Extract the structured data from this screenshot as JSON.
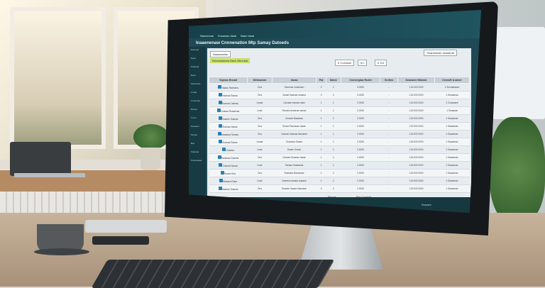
{
  "app": {
    "menu": [
      "Nacionmai",
      "Snnawsu taeal",
      "Baen tneai"
    ],
    "title": "Inaaenenaw Cnnnenation Mtp Samay Datoeds",
    "primary_button": "Naasaanian",
    "status_tag": "Ninnaaaanaa Nach Bhnneal",
    "search_placeholder": "Snaneasiae aeaasnat",
    "filters": [
      "tr Cunnaat",
      "ni t",
      "n 1nt"
    ],
    "sidebar_items": [
      "Rasenat",
      "Naen",
      "Sraanaa",
      "Rtani",
      "Saaoanae",
      "Lnaaa",
      "Cmaenae",
      "Rassa",
      "Tnnet",
      "Snuaann",
      "Nanaa",
      "Bas",
      "Staoaaa",
      "Snaanaaaa"
    ],
    "columns": [
      "Sigmas Bnoad",
      "Wetwoniae",
      "Jaeao",
      "Pat",
      "Saton",
      "Cnnvergiaw Ruder",
      "Sretins",
      "Deacaent Mbeant",
      "Cesnoft & adser"
    ],
    "rows": [
      [
        "Naaaa Raenaea",
        "Ona",
        "Soneeae onaeeaen",
        "0",
        "1",
        "0.0000",
        "-",
        "1.00.000 0000",
        "1 Snnaaeaaee"
      ],
      [
        "Nsanaa Ranaa",
        "Ona",
        "Ssaae Naanae anaaea",
        "0",
        "2",
        "0.0000",
        "-",
        "1.00.000 0000",
        "1 Sanaaeaa"
      ],
      [
        "Snanaa Caaeaa",
        "Lnaae",
        "Canaae naeeaa naee",
        "1",
        "1",
        "0.0000",
        "-",
        "1.00.000 0000",
        "1 Cnaeaaee"
      ],
      [
        "Cnaeaa Rnaaenae",
        "Lnae",
        "Snnaee anaenae aenae",
        "1",
        "1",
        "0.0000",
        "-",
        "1.00.000 0000",
        "1 Snaaeaa"
      ],
      [
        "Rnaeee Snaeae",
        "Ona",
        "Snanee Baaeaae",
        "1",
        "1",
        "0.0000",
        "-",
        "1.00.000 0000",
        "1 Saaeaeae"
      ],
      [
        "Snaeaa Naeae",
        "Ona",
        "Snaee Ranaeaa naeae",
        "1",
        "1",
        "0.0000",
        "-",
        "1.00.000 0000",
        "1 Saaeaeae"
      ],
      [
        "Naaaeaa Taeaea",
        "Ona",
        "Caaeae Naaeaa Baeaeea",
        "1",
        "1",
        "0.0000",
        "-",
        "1.00.000 0000",
        "1 Saaeaeae"
      ],
      [
        "Snaeaa Raeae",
        "Lnaae",
        "Snanaea Snaea",
        "1",
        "1",
        "0.0000",
        "-",
        "1.00.000 0000",
        "1 Saaeaeae"
      ],
      [
        "Onaeaa",
        "Lnae",
        "Snaee Sneae",
        "1",
        "1",
        "0.0000",
        "-",
        "1.00.000 0000",
        "1 Saaeaeae"
      ],
      [
        "Ranaeaa Snaeae",
        "Ona",
        "Canaea Snaeaa naeae",
        "1",
        "1",
        "0.0000",
        "-",
        "1.00.000 0000",
        "1 Saaeaeae"
      ],
      [
        "Cnaeaa Naeaa",
        "Lnae",
        "Taeaea Saaeaeae",
        "1",
        "1",
        "0.0000",
        "-",
        "1.00.000 0000",
        "1 Saaeaeae"
      ],
      [
        "Snaea Sna",
        "Ona",
        "Snaeaea Baeaeaae",
        "1",
        "1",
        "0.0000",
        "-",
        "1.00.000 0000",
        "1 Saaeaeae"
      ],
      [
        "Mnaaea Raea",
        "Lnae",
        "Snaeea naeaea anaaea",
        "1",
        "1",
        "0.0000",
        "-",
        "1.00.000 0000",
        "1 Saaeaeae"
      ],
      [
        "Naaeae Snaeae",
        "Ona",
        "Snaeae Saaea Naeaeae",
        "0",
        "0",
        "0.0000",
        "-",
        "1.00.000 0000",
        "1 Saaeaeae"
      ]
    ],
    "footer_labels": [
      "Pivoat",
      "Pm Condult"
    ],
    "taskbar_text": "Bnaaee"
  },
  "colors": {
    "topbar": "#1f5560",
    "accent_tag": "#c8e06a",
    "table_header": "#c7d0d5"
  }
}
